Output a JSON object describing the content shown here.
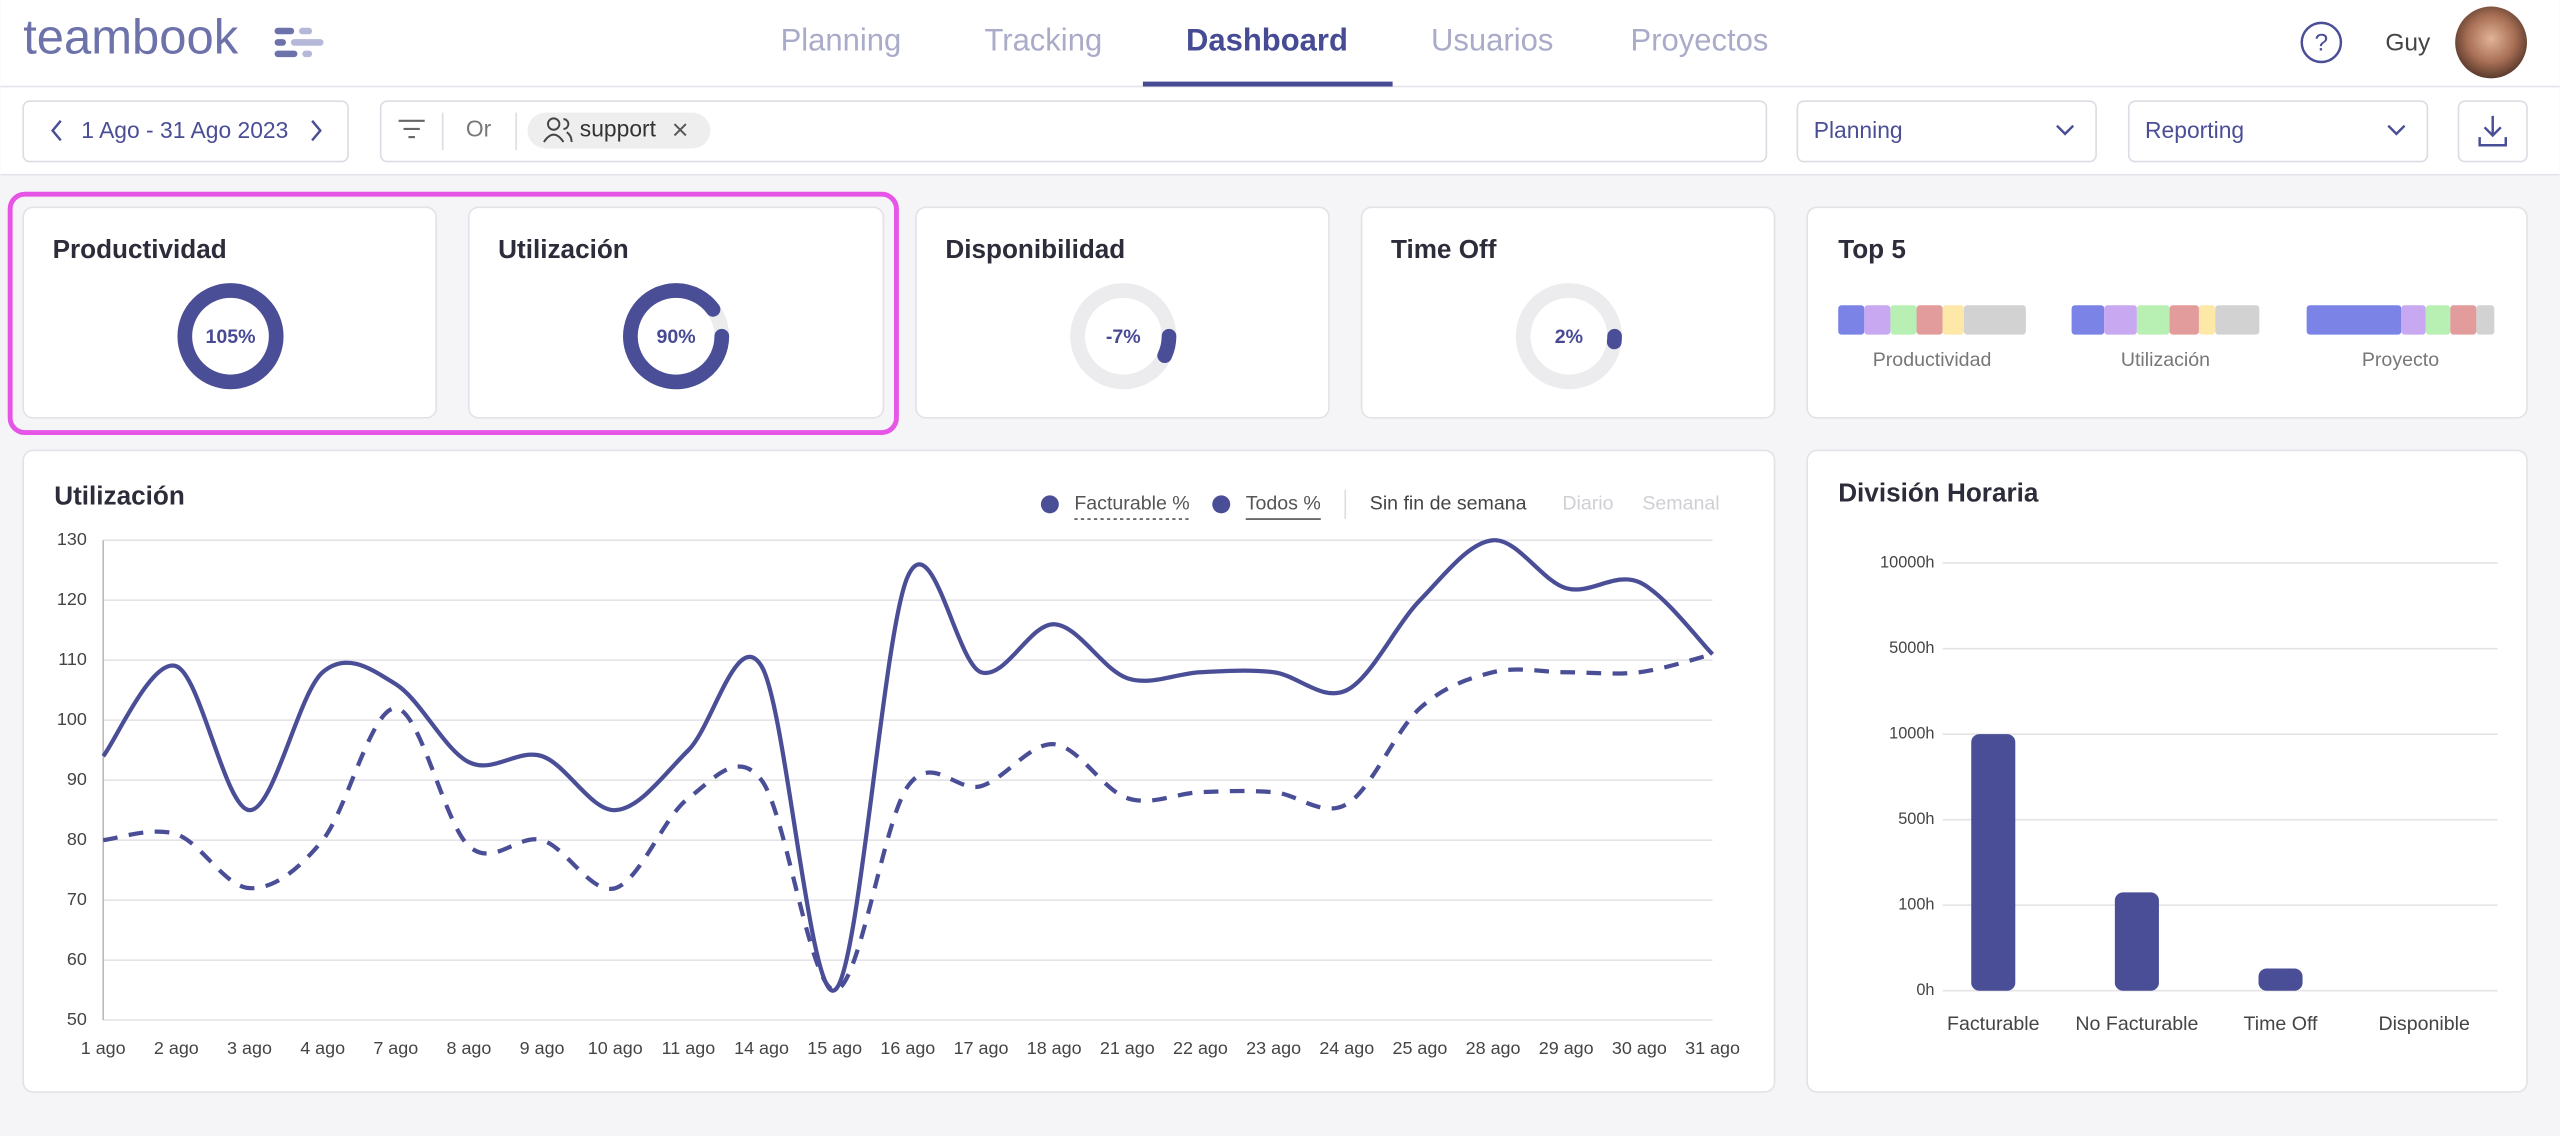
{
  "header": {
    "logo": "teambook",
    "nav": [
      "Planning",
      "Tracking",
      "Dashboard",
      "Usuarios",
      "Proyectos"
    ],
    "active_nav": 2,
    "help": "?",
    "user": "Guy"
  },
  "toolbar": {
    "date_range": "1 Ago - 31 Ago 2023",
    "filter_mode": "Or",
    "filter_tag": "support",
    "select_view": "Planning",
    "select_report": "Reporting"
  },
  "kpis": [
    {
      "title": "Productividad",
      "value": 105,
      "value_label": "105%"
    },
    {
      "title": "Utilización",
      "value": 90,
      "value_label": "90%"
    },
    {
      "title": "Disponibilidad",
      "value": -7,
      "value_label": "-7%"
    },
    {
      "title": "Time Off",
      "value": 2,
      "value_label": "2%"
    }
  ],
  "top5": {
    "title": "Top 5",
    "groups": [
      {
        "name": "Productividad",
        "values": [
          16,
          16,
          16,
          16,
          13,
          38
        ],
        "colors": [
          "#7b83e6",
          "#c9a8f2",
          "#b8f0b3",
          "#e39c9c",
          "#fde8a8",
          "#d2d2d2"
        ]
      },
      {
        "name": "Utilización",
        "values": [
          20,
          20,
          20,
          18,
          10,
          27
        ],
        "colors": [
          "#7b83e6",
          "#c9a8f2",
          "#b8f0b3",
          "#e39c9c",
          "#fde8a8",
          "#d2d2d2"
        ]
      },
      {
        "name": "Proyecto",
        "values": [
          58,
          15,
          15,
          16,
          11
        ],
        "colors": [
          "#7b83e6",
          "#c9a8f2",
          "#b8f0b3",
          "#e39c9c",
          "#d2d2d2"
        ]
      }
    ]
  },
  "utilization_chart": {
    "type": "line",
    "title": "Utilización",
    "options": [
      "Sin fin de semana",
      "Diario",
      "Semanal"
    ],
    "categories": [
      "1 ago",
      "2 ago",
      "3 ago",
      "4 ago",
      "7 ago",
      "8 ago",
      "9 ago",
      "10 ago",
      "11 ago",
      "14 ago",
      "15 ago",
      "16 ago",
      "17 ago",
      "18 ago",
      "21 ago",
      "22 ago",
      "23 ago",
      "24 ago",
      "25 ago",
      "28 ago",
      "29 ago",
      "30 ago",
      "31 ago"
    ],
    "series": [
      {
        "name": "Facturable %",
        "color": "#4a4e96",
        "dashed": true,
        "values": [
          80,
          81,
          72,
          80,
          102,
          79,
          80,
          72,
          87,
          90,
          55,
          89,
          89,
          96,
          87,
          88,
          88,
          86,
          102,
          108,
          108,
          108,
          111
        ]
      },
      {
        "name": "Todos %",
        "color": "#4a4e96",
        "dashed": false,
        "values": [
          94,
          109,
          85,
          108,
          106,
          93,
          94,
          85,
          95,
          109,
          55,
          124,
          108,
          116,
          107,
          108,
          108,
          105,
          120,
          130,
          122,
          123,
          111
        ]
      }
    ],
    "ylim": [
      50,
      130
    ],
    "yticks": [
      50,
      60,
      70,
      80,
      90,
      100,
      110,
      120,
      130
    ],
    "grid": true
  },
  "hours_chart": {
    "type": "bar",
    "title": "División Horaria",
    "categories": [
      "Facturable",
      "No Facturable",
      "Time Off",
      "Disponible"
    ],
    "values": [
      1000,
      160,
      26,
      0
    ],
    "color": "#4a4e96",
    "ylim": [
      0,
      10000
    ],
    "yticks": [
      {
        "value": 0,
        "label": "0h"
      },
      {
        "value": 100,
        "label": "100h"
      },
      {
        "value": 500,
        "label": "500h"
      },
      {
        "value": 1000,
        "label": "1000h"
      },
      {
        "value": 5000,
        "label": "5000h"
      },
      {
        "value": 10000,
        "label": "10000h"
      }
    ],
    "grid": true
  }
}
